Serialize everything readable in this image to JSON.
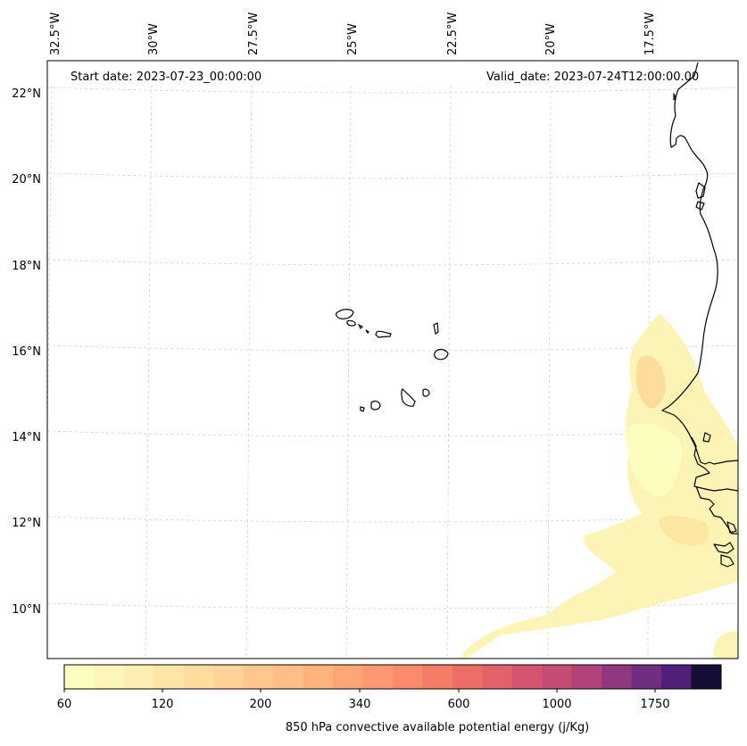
{
  "map": {
    "start_date": "Start date: 2023-07-23_00:00:00",
    "valid_date": "Valid_date: 2023-07-24T12:00:00.00",
    "longitude_labels": [
      "32.5°W",
      "30°W",
      "27.5°W",
      "25°W",
      "22.5°W",
      "20°W",
      "17.5°W"
    ],
    "latitude_labels": [
      "22°N",
      "20°N",
      "18°N",
      "16°N",
      "14°N",
      "12°N",
      "10°N"
    ],
    "gridlines": true,
    "field_colors": [
      "#fcfdbf",
      "#fcf3b0",
      "#fde6a1",
      "#fcd99a"
    ]
  },
  "colorbar": {
    "label": "850 hPa convective available potential energy (j/Kg)",
    "tick_labels": [
      "60",
      "120",
      "200",
      "340",
      "600",
      "1000",
      "1750"
    ],
    "colors": [
      "#fcfdbf",
      "#fcf6b8",
      "#fdefb1",
      "#fde6a5",
      "#fedc9c",
      "#fed395",
      "#fec88c",
      "#febe85",
      "#feb27c",
      "#fda676",
      "#fc9970",
      "#f98b6b",
      "#f47d68",
      "#ec6e66",
      "#e26269",
      "#d5556f",
      "#c44c75",
      "#b0437a",
      "#8f3880",
      "#6f2e80",
      "#4f1f7a",
      "#140e36"
    ]
  }
}
